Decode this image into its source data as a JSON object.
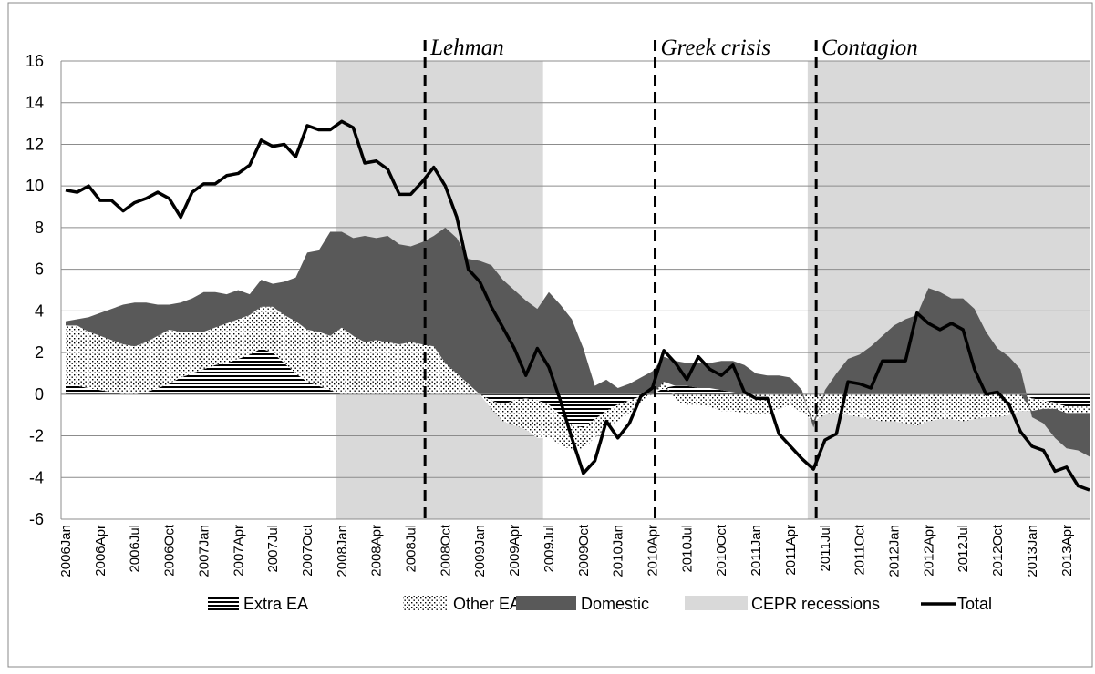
{
  "chart_data": {
    "type": "stacked-area-line",
    "categories": [
      "2006Jan",
      null,
      null,
      "2006Apr",
      null,
      null,
      "2006Jul",
      null,
      null,
      "2006Oct",
      null,
      null,
      "2007Jan",
      null,
      null,
      "2007Apr",
      null,
      null,
      "2007Jul",
      null,
      null,
      "2007Oct",
      null,
      null,
      "2008Jan",
      null,
      null,
      "2008Apr",
      null,
      null,
      "2008Jul",
      null,
      null,
      "2008Oct",
      null,
      null,
      "2009Jan",
      null,
      null,
      "2009Apr",
      null,
      null,
      "2009Jul",
      null,
      null,
      "2009Oct",
      null,
      null,
      "2010Jan",
      null,
      null,
      "2010Apr",
      null,
      null,
      "2010Jul",
      null,
      null,
      "2010Oct",
      null,
      null,
      "2011Jan",
      null,
      null,
      "2011Apr",
      null,
      null,
      "2011Jul",
      null,
      null,
      "2011Oct",
      null,
      null,
      "2012Jan",
      null,
      null,
      "2012Apr",
      null,
      null,
      "2012Jul",
      null,
      null,
      "2012Oct",
      null,
      null,
      "2013Jan",
      null,
      null,
      "2013Apr",
      null,
      null
    ],
    "series": [
      {
        "name": "Extra EA",
        "kind": "area",
        "pattern": "hstripes",
        "color": "#000000",
        "values": [
          0.5,
          0.4,
          0.3,
          0.2,
          0.1,
          0.0,
          0.0,
          0.1,
          0.3,
          0.5,
          0.8,
          1.0,
          1.2,
          1.4,
          1.5,
          1.7,
          1.9,
          2.2,
          2.0,
          1.5,
          1.0,
          0.6,
          0.4,
          0.2,
          0,
          0,
          0,
          0,
          0,
          0,
          0,
          0,
          0,
          0,
          0,
          0,
          0.0,
          -0.3,
          -0.5,
          -0.3,
          -0.2,
          -0.3,
          -0.5,
          -1.0,
          -1.5,
          -1.6,
          -1.2,
          -0.8,
          -0.5,
          -0.3,
          -0.1,
          0.0,
          0.3,
          0.4,
          0.4,
          0.3,
          0.3,
          0.2,
          0.1,
          0.0,
          0,
          0,
          0,
          0,
          0,
          0,
          0,
          0,
          0,
          0,
          0,
          0,
          0,
          0,
          0,
          0,
          0,
          0,
          0,
          0,
          0,
          0,
          0,
          0,
          -0.2,
          -0.3,
          -0.4,
          -0.6,
          -0.6,
          -0.6
        ]
      },
      {
        "name": "Other EA",
        "kind": "area",
        "pattern": "dots",
        "color": "#000000",
        "values": [
          2.8,
          2.9,
          2.7,
          2.6,
          2.5,
          2.4,
          2.3,
          2.4,
          2.5,
          2.6,
          2.2,
          2.0,
          1.8,
          1.8,
          1.9,
          1.9,
          1.9,
          2.0,
          2.2,
          2.3,
          2.5,
          2.5,
          2.6,
          2.6,
          3.2,
          2.8,
          2.5,
          2.6,
          2.5,
          2.4,
          2.5,
          2.4,
          2.3,
          1.5,
          1.0,
          0.5,
          0.0,
          -0.4,
          -0.8,
          -1.2,
          -1.5,
          -1.8,
          -1.6,
          -1.4,
          -1.2,
          -1.0,
          -0.9,
          -0.8,
          -0.8,
          -0.6,
          -0.3,
          0.0,
          0.3,
          -0.3,
          -0.5,
          -0.5,
          -0.6,
          -0.8,
          -0.8,
          -0.9,
          -1.0,
          -1.0,
          -0.7,
          -0.5,
          -0.9,
          -1.3,
          -1.0,
          -0.9,
          -1.0,
          -1.1,
          -1.2,
          -1.3,
          -1.3,
          -1.4,
          -1.5,
          -1.3,
          -1.2,
          -1.2,
          -1.3,
          -1.2,
          -1.1,
          -1.1,
          -1.0,
          -0.8,
          -0.6,
          -0.4,
          -0.3,
          -0.3,
          -0.3,
          -0.3
        ]
      },
      {
        "name": "Domestic",
        "kind": "area",
        "pattern": "solid",
        "color": "#595959",
        "values": [
          0.2,
          0.3,
          0.7,
          1.1,
          1.5,
          1.9,
          2.1,
          1.9,
          1.5,
          1.2,
          1.4,
          1.6,
          1.9,
          1.7,
          1.4,
          1.4,
          1.0,
          1.3,
          1.1,
          1.6,
          2.1,
          3.7,
          3.9,
          5.0,
          4.6,
          4.7,
          5.1,
          4.9,
          5.1,
          4.8,
          4.6,
          4.9,
          5.3,
          6.5,
          6.5,
          6.0,
          6.4,
          6.2,
          5.5,
          5.0,
          4.5,
          4.1,
          4.9,
          4.3,
          3.6,
          2.2,
          0.4,
          0.7,
          0.3,
          0.5,
          0.8,
          1.1,
          1.2,
          1.2,
          1.1,
          1.2,
          1.2,
          1.4,
          1.5,
          1.4,
          1.0,
          0.9,
          0.9,
          0.8,
          0.2,
          -0.3,
          0.2,
          1.0,
          1.7,
          1.9,
          2.3,
          2.8,
          3.3,
          3.6,
          3.8,
          5.1,
          4.9,
          4.6,
          4.6,
          4.1,
          3.0,
          2.2,
          1.8,
          1.2,
          -0.3,
          -0.7,
          -1.4,
          -1.7,
          -1.8,
          -2.1
        ]
      },
      {
        "name": "Total",
        "kind": "line",
        "color": "#000000",
        "values": [
          9.8,
          9.7,
          10.0,
          9.3,
          9.3,
          8.8,
          9.2,
          9.4,
          9.7,
          9.4,
          8.5,
          9.7,
          10.1,
          10.1,
          10.5,
          10.6,
          11.0,
          12.2,
          11.9,
          12.0,
          11.4,
          12.9,
          12.7,
          12.7,
          13.1,
          12.8,
          11.1,
          11.2,
          10.8,
          9.6,
          9.6,
          10.2,
          10.9,
          10.0,
          8.5,
          6.0,
          5.4,
          4.2,
          3.2,
          2.2,
          0.9,
          2.2,
          1.3,
          -0.3,
          -2.1,
          -3.8,
          -3.2,
          -1.3,
          -2.1,
          -1.4,
          -0.1,
          0.3,
          2.1,
          1.5,
          0.7,
          1.8,
          1.2,
          0.9,
          1.4,
          0.1,
          -0.2,
          -0.2,
          -1.9,
          -2.5,
          -3.1,
          -3.6,
          -2.2,
          -1.9,
          0.6,
          0.5,
          0.3,
          1.6,
          1.6,
          1.6,
          3.9,
          3.4,
          3.1,
          3.4,
          3.1,
          1.2,
          0.0,
          0.1,
          -0.5,
          -1.8,
          -2.5,
          -2.7,
          -3.7,
          -3.5,
          -4.4,
          -4.6
        ]
      }
    ],
    "recessions": {
      "name": "CEPR recessions",
      "color": "#d9d9d9",
      "periods": [
        [
          24,
          41
        ],
        [
          65,
          89
        ]
      ]
    },
    "events": [
      {
        "label": "Lehman",
        "at": 31
      },
      {
        "label": "Greek crisis",
        "at": 51
      },
      {
        "label": "Contagion",
        "at": 65
      }
    ],
    "ylim": [
      -6,
      16
    ],
    "yticks": [
      -6,
      -4,
      -2,
      0,
      2,
      4,
      6,
      8,
      10,
      12,
      14,
      16
    ],
    "grid": true
  }
}
